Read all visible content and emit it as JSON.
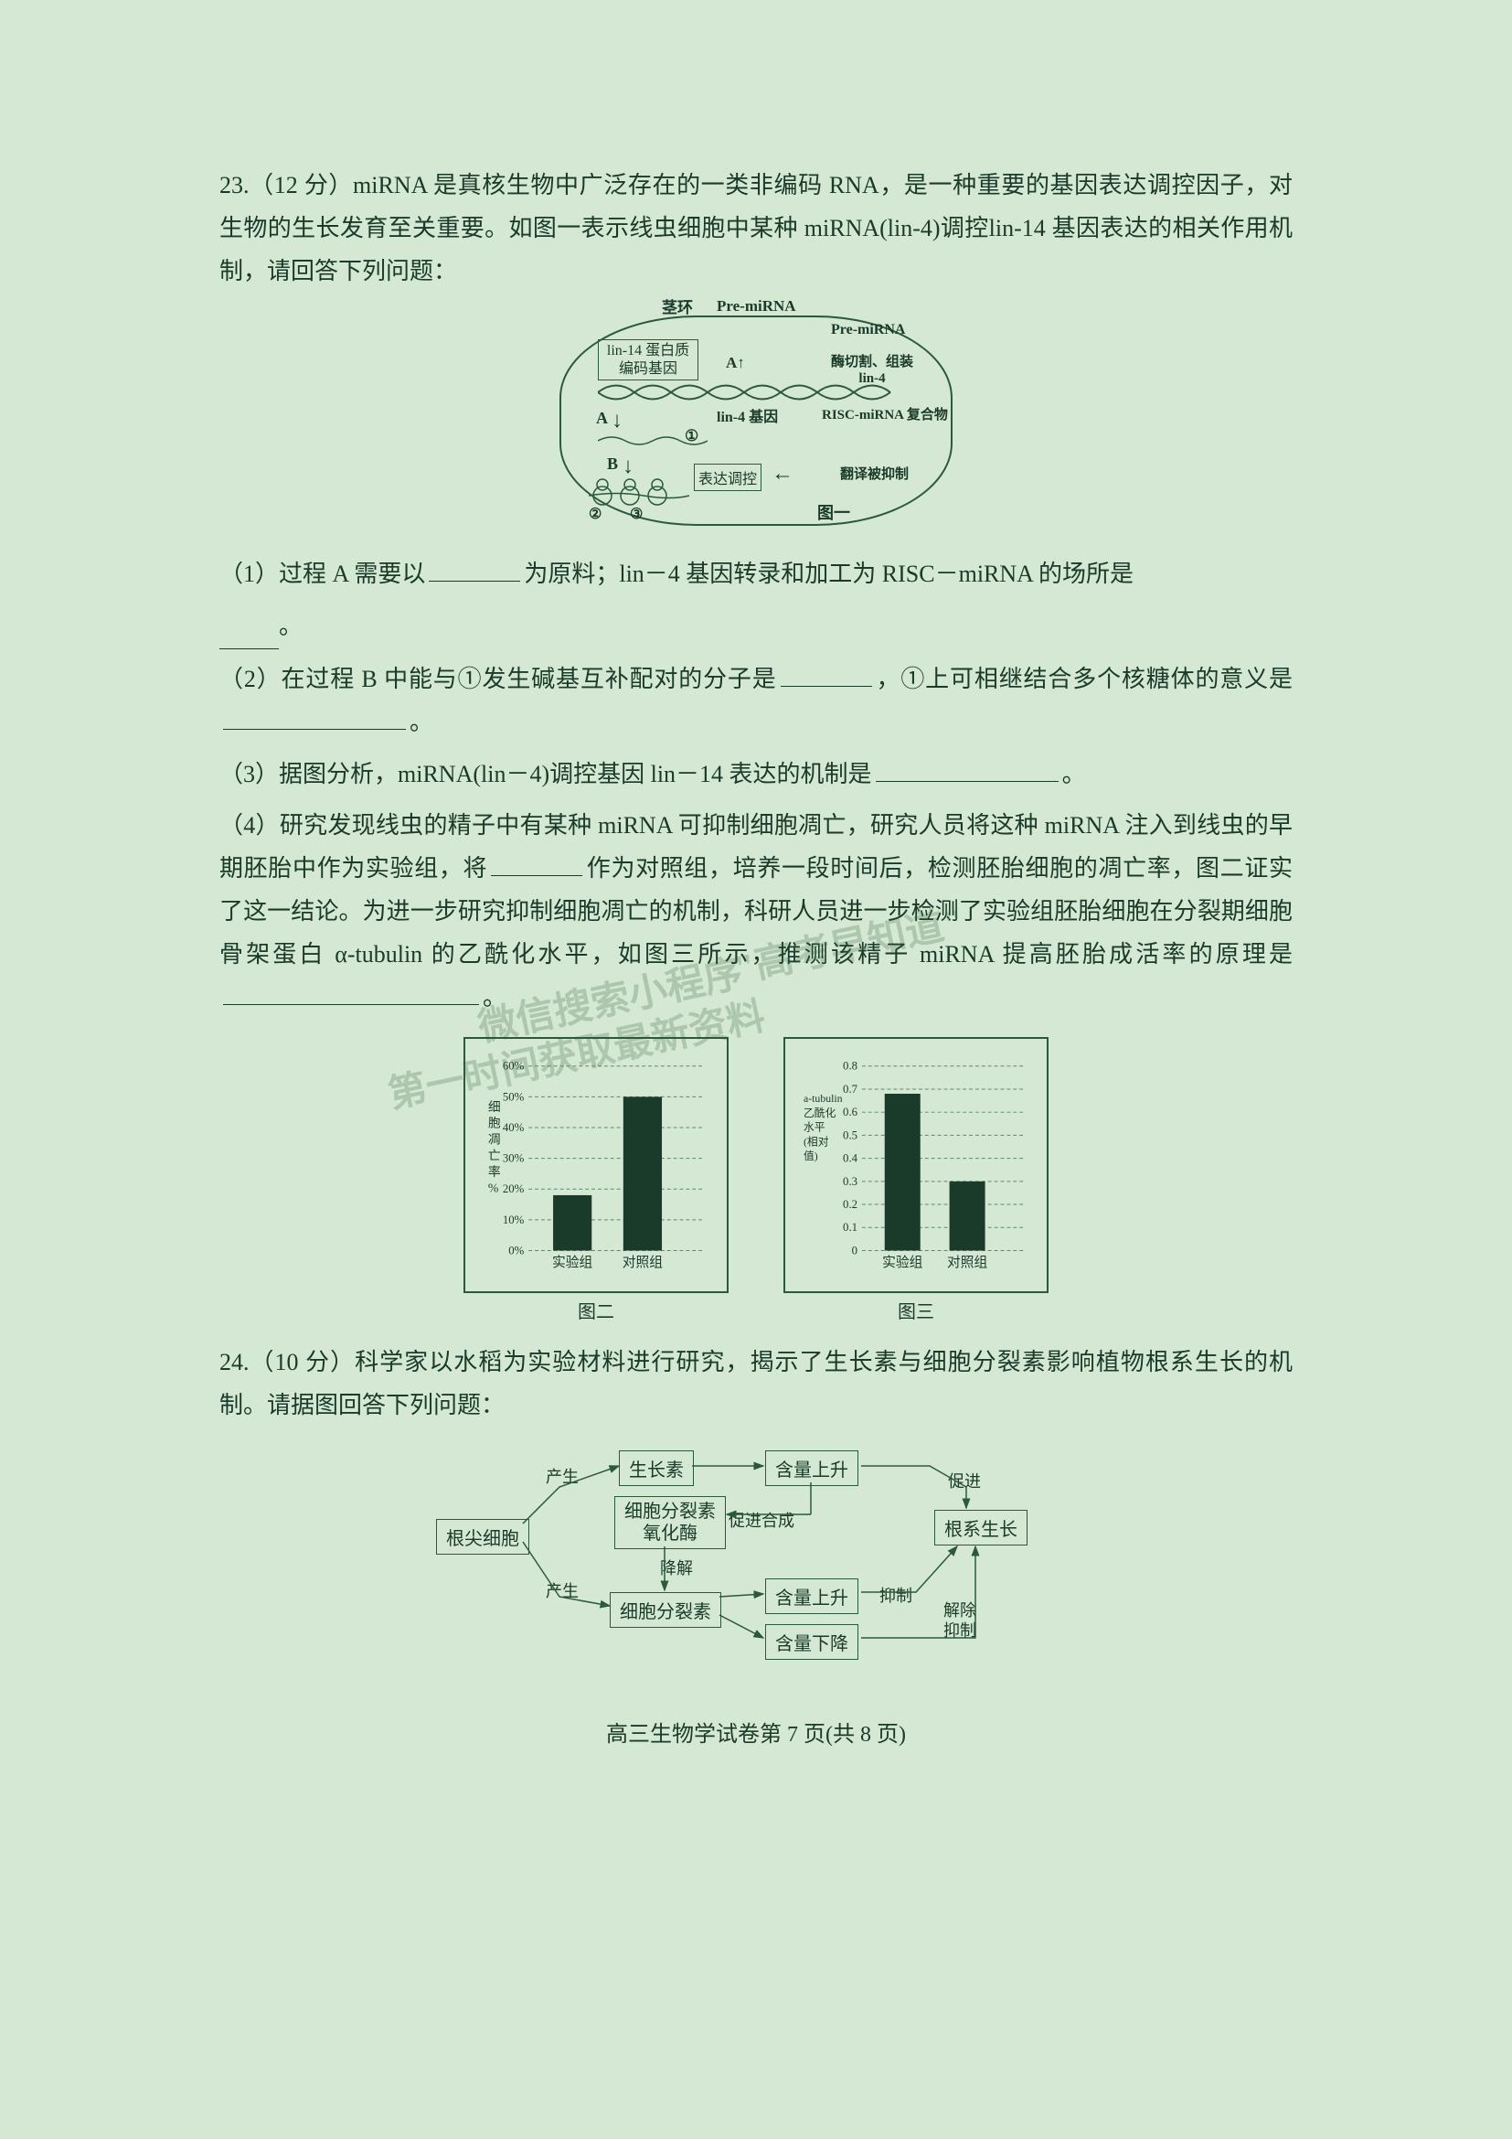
{
  "q23": {
    "header": "23.（12 分）miRNA 是真核生物中广泛存在的一类非编码 RNA，是一种重要的基因表达调控因子，对生物的生长发育至关重要。如图一表示线虫细胞中某种 miRNA(lin-4)调控lin-14 基因表达的相关作用机制，请回答下列问题：",
    "sub1_a": "（1）过程 A 需要以",
    "sub1_b": "为原料；lin－4 基因转录和加工为 RISC－miRNA 的场所是",
    "sub1_c": "。",
    "sub2_a": "（2）在过程 B 中能与①发生碱基互补配对的分子是",
    "sub2_b": "，①上可相继结合多个核糖体的意义是",
    "sub2_c": "。",
    "sub3_a": "（3）据图分析，miRNA(lin－4)调控基因 lin－14 表达的机制是",
    "sub3_b": "。",
    "sub4_a": "（4）研究发现线虫的精子中有某种 miRNA 可抑制细胞凋亡，研究人员将这种 miRNA 注入到线虫的早期胚胎中作为实验组，将",
    "sub4_b": "作为对照组，培养一段时间后，检测胚胎细胞的凋亡率，图二证实了这一结论。为进一步研究抑制细胞凋亡的机制，科研人员进一步检测了实验组胚胎细胞在分裂期细胞骨架蛋白 α-tubulin 的乙酰化水平，如图三所示，推测该精子 miRNA 提高胚胎成活率的原理是",
    "sub4_c": "。"
  },
  "fig1": {
    "pre_mirna1": "Pre-miRNA",
    "pre_mirna2": "Pre-miRNA",
    "stem_loop": "茎环",
    "lin14_protein": "lin-14 蛋白质\n编码基因",
    "lin4_gene": "lin-4 基因",
    "enzyme": "酶切割、组装\nlin-4",
    "risc": "RISC-miRNA 复合物",
    "center_label": "A↑",
    "expr_control": "表达调控",
    "translate_inhibit": "翻译被抑制",
    "fig_label": "图一",
    "label_A": "A",
    "label_B": "B",
    "num1": "①",
    "num2": "②",
    "num3": "③"
  },
  "chart2": {
    "title": "图二",
    "ylabel": "细胞凋亡率%",
    "yticks": [
      "0%",
      "10%",
      "20%",
      "30%",
      "40%",
      "50%",
      "60%"
    ],
    "categories": [
      "实验组",
      "对照组"
    ],
    "values": [
      18,
      50
    ],
    "ymax": 60,
    "bar_color": "#1a3a2a",
    "bg_color": "transparent",
    "text_color": "#1a3a2a",
    "grid_color": "#5a8a6a",
    "grid_dash": "4,3"
  },
  "chart3": {
    "title": "图三",
    "ylabel": "a-tubulin\n乙酰化\n水平\n(相对\n值)",
    "yticks": [
      "0",
      "0.1",
      "0.2",
      "0.3",
      "0.4",
      "0.5",
      "0.6",
      "0.7",
      "0.8"
    ],
    "categories": [
      "实验组",
      "对照组"
    ],
    "values": [
      0.68,
      0.3
    ],
    "ymax": 0.8,
    "bar_color": "#1a3a2a",
    "bg_color": "transparent",
    "text_color": "#1a3a2a",
    "grid_color": "#5a8a6a",
    "grid_dash": "4,3"
  },
  "q24": {
    "header": "24.（10 分）科学家以水稻为实验材料进行研究，揭示了生长素与细胞分裂素影响植物根系生长的机制。请据图回答下列问题："
  },
  "flowchart": {
    "root_tip": "根尖细胞",
    "produce1": "产生",
    "produce2": "产生",
    "auxin": "生长素",
    "content_up1": "含量上升",
    "promote": "促进",
    "root_growth": "根系生长",
    "cytokinin_oxidase": "细胞分裂素\n氧化酶",
    "promote_synth": "促进合成",
    "degrade": "降解",
    "cytokinin": "细胞分裂素",
    "content_up2": "含量上升",
    "content_down": "含量下降",
    "inhibit": "抑制",
    "release_inhibit": "解除\n抑制"
  },
  "footer": {
    "text": "高三生物学试卷第  7 页(共 8 页)"
  },
  "watermarks": {
    "wm1": "\"高考早知道\"",
    "wm2": "微信搜索小程序",
    "wm3": "第一时间获取最新资料"
  }
}
